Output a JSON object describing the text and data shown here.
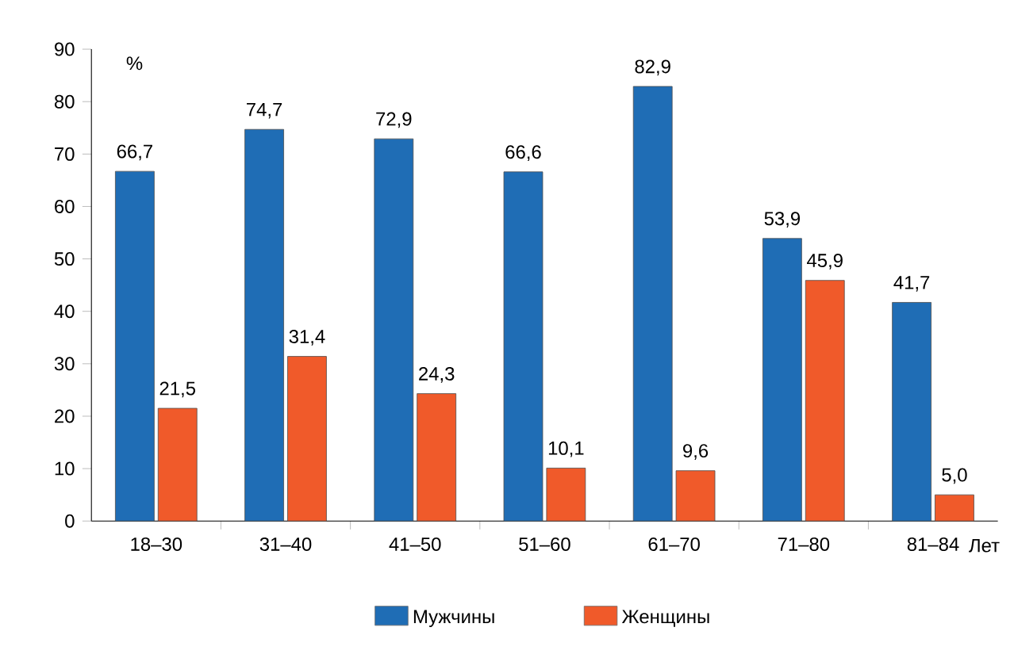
{
  "chart_data": {
    "type": "bar",
    "xlabel": "Лет",
    "ylabel": "%",
    "categories": [
      "18–30",
      "31–40",
      "41–50",
      "51–60",
      "61–70",
      "71–80",
      "81–84"
    ],
    "series": [
      {
        "name": "Мужчины",
        "color": "#1f6db5",
        "values": [
          66.7,
          74.7,
          72.9,
          66.6,
          82.9,
          53.9,
          41.7
        ],
        "value_labels": [
          "66,7",
          "74,7",
          "72,9",
          "66,6",
          "82,9",
          "53,9",
          "41,7"
        ]
      },
      {
        "name": "Женщины",
        "color": "#f05a2a",
        "values": [
          21.5,
          31.4,
          24.3,
          10.1,
          9.6,
          45.9,
          5.0
        ],
        "value_labels": [
          "21,5",
          "31,4",
          "24,3",
          "10,1",
          "9,6",
          "45,9",
          "5,0"
        ]
      }
    ],
    "ylim": [
      0,
      90
    ],
    "yticks": [
      0,
      10,
      20,
      30,
      40,
      50,
      60,
      70,
      80,
      90
    ],
    "legend": "bottom"
  }
}
